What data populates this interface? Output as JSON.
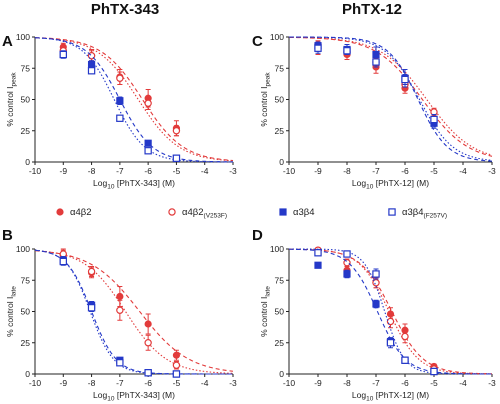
{
  "titles": {
    "left": "PhTX-343",
    "right": "PhTX-12"
  },
  "colors": {
    "red": "#e23b3b",
    "blue": "#2438c8"
  },
  "legend": [
    {
      "base": "α4β2",
      "sub": "",
      "color": "#e23b3b",
      "marker": "filled-circle",
      "line": "dashed"
    },
    {
      "base": "α4β2",
      "sub": "(V253F)",
      "color": "#e23b3b",
      "marker": "open-circle",
      "line": "dotted"
    },
    {
      "base": "α3β4",
      "sub": "",
      "color": "#2438c8",
      "marker": "filled-square",
      "line": "dashed"
    },
    {
      "base": "α3β4",
      "sub": "(F257V)",
      "color": "#2438c8",
      "marker": "open-square",
      "line": "dotted"
    }
  ],
  "chart_data": [
    {
      "panel": "A",
      "type": "scatter",
      "xlabel": {
        "pre": "Log",
        "sub": "10",
        "post": " [PhTX-343] (M)"
      },
      "ylabel": {
        "pre": "% control I",
        "sub": "peak"
      },
      "xlim": [
        -10,
        -3
      ],
      "ylim": [
        0,
        100
      ],
      "xticks": [
        -10,
        -9,
        -8,
        -7,
        -6,
        -5,
        -4,
        -3
      ],
      "yticks": [
        0,
        25,
        50,
        75,
        100
      ],
      "series": [
        {
          "x": [
            -9,
            -8,
            -7,
            -6,
            -5
          ],
          "y": [
            92,
            85,
            68,
            51,
            27
          ],
          "err": [
            3,
            5,
            6,
            7,
            6
          ],
          "fit": {
            "ic50": -6.2,
            "hill": 0.6
          }
        },
        {
          "x": [
            -9,
            -8,
            -7,
            -6,
            -5
          ],
          "y": [
            89,
            85,
            67,
            47,
            25
          ],
          "err": [
            4,
            4,
            5,
            5,
            4
          ],
          "fit": {
            "ic50": -6.35,
            "hill": 0.6
          }
        },
        {
          "x": [
            -9,
            -8,
            -7,
            -6,
            -5
          ],
          "y": [
            86,
            78,
            49,
            15,
            3
          ],
          "err": [
            3,
            3,
            3,
            2,
            1
          ],
          "fit": {
            "ic50": -7.0,
            "hill": 0.75
          }
        },
        {
          "x": [
            -9,
            -8,
            -7,
            -6,
            -5
          ],
          "y": [
            86,
            73,
            35,
            9,
            3
          ],
          "err": [
            2,
            2,
            2,
            2,
            1
          ],
          "fit": {
            "ic50": -7.2,
            "hill": 0.8
          }
        }
      ]
    },
    {
      "panel": "C",
      "type": "scatter",
      "xlabel": {
        "pre": "Log",
        "sub": "10",
        "post": " [PhTX-12] (M)"
      },
      "ylabel": {
        "pre": "% control I",
        "sub": "peak"
      },
      "xlim": [
        -10,
        -3
      ],
      "ylim": [
        0,
        100
      ],
      "xticks": [
        -10,
        -9,
        -8,
        -7,
        -6,
        -5,
        -4,
        -3
      ],
      "yticks": [
        0,
        25,
        50,
        75,
        100
      ],
      "series": [
        {
          "x": [
            -9,
            -8,
            -7,
            -6,
            -5
          ],
          "y": [
            91,
            86,
            76,
            59,
            35
          ],
          "err": [
            5,
            4,
            5,
            4,
            5
          ],
          "fit": {
            "ic50": -5.4,
            "hill": 0.55
          }
        },
        {
          "x": [
            -9,
            -8,
            -7,
            -6,
            -5
          ],
          "y": [
            94,
            88,
            80,
            62,
            40
          ],
          "err": [
            3,
            3,
            3,
            3,
            3
          ],
          "fit": {
            "ic50": -5.25,
            "hill": 0.55
          }
        },
        {
          "x": [
            -9,
            -8,
            -7,
            -6,
            -5
          ],
          "y": [
            93,
            90,
            86,
            67,
            31
          ],
          "err": [
            3,
            4,
            6,
            7,
            4
          ],
          "fit": {
            "ic50": -5.55,
            "hill": 0.85
          }
        },
        {
          "x": [
            -9,
            -8,
            -7,
            -6,
            -5
          ],
          "y": [
            91,
            89,
            80,
            66,
            34
          ],
          "err": [
            4,
            3,
            4,
            4,
            4
          ],
          "fit": {
            "ic50": -5.5,
            "hill": 0.75
          }
        }
      ]
    },
    {
      "panel": "B",
      "type": "scatter",
      "xlabel": {
        "pre": "Log",
        "sub": "10",
        "post": " [PhTX-343] (M)"
      },
      "ylabel": {
        "pre": "% control I",
        "sub": "late"
      },
      "xlim": [
        -10,
        -3
      ],
      "ylim": [
        0,
        100
      ],
      "xticks": [
        -10,
        -9,
        -8,
        -7,
        -6,
        -5,
        -4,
        -3
      ],
      "yticks": [
        0,
        25,
        50,
        75,
        100
      ],
      "series": [
        {
          "x": [
            -9,
            -8,
            -7,
            -6,
            -5
          ],
          "y": [
            95,
            81,
            62,
            40,
            15
          ],
          "err": [
            4,
            4,
            8,
            8,
            4
          ],
          "fit": {
            "ic50": -6.3,
            "hill": 0.5
          }
        },
        {
          "x": [
            -9,
            -8,
            -7,
            -6,
            -5
          ],
          "y": [
            96,
            82,
            51,
            25,
            7
          ],
          "err": [
            4,
            4,
            8,
            6,
            3
          ],
          "fit": {
            "ic50": -6.8,
            "hill": 0.6
          }
        },
        {
          "x": [
            -9,
            -8,
            -7,
            -6,
            -5
          ],
          "y": [
            91,
            55,
            11,
            1,
            0
          ],
          "err": [
            3,
            3,
            2,
            1,
            0
          ],
          "fit": {
            "ic50": -8.0,
            "hill": 1.0
          }
        },
        {
          "x": [
            -9,
            -8,
            -7,
            -6,
            -5
          ],
          "y": [
            90,
            53,
            9,
            1,
            0
          ],
          "err": [
            3,
            3,
            2,
            1,
            0
          ],
          "fit": {
            "ic50": -8.05,
            "hill": 1.05
          }
        }
      ]
    },
    {
      "panel": "D",
      "type": "scatter",
      "xlabel": {
        "pre": "Log",
        "sub": "10",
        "post": " [PhTX-12] (M)"
      },
      "ylabel": {
        "pre": "% control I",
        "sub": "late"
      },
      "xlim": [
        -10,
        -3
      ],
      "ylim": [
        0,
        100
      ],
      "xticks": [
        -10,
        -9,
        -8,
        -7,
        -6,
        -5,
        -4,
        -3
      ],
      "yticks": [
        0,
        25,
        50,
        75,
        100
      ],
      "series": [
        {
          "x": [
            -9,
            -8,
            -7,
            -6.5,
            -6,
            -5
          ],
          "y": [
            99,
            83,
            73,
            48,
            35,
            6
          ],
          "err": [
            2,
            3,
            4,
            5,
            5,
            2
          ],
          "fit": {
            "ic50": -6.45,
            "hill": 0.8
          }
        },
        {
          "x": [
            -9,
            -8,
            -7,
            -6.5,
            -6,
            -5
          ],
          "y": [
            99,
            89,
            73,
            42,
            30,
            4
          ],
          "err": [
            2,
            3,
            4,
            5,
            5,
            2
          ],
          "fit": {
            "ic50": -6.55,
            "hill": 0.85
          }
        },
        {
          "x": [
            -9,
            -8,
            -7,
            -6.5,
            -6,
            -5
          ],
          "y": [
            87,
            80,
            56,
            26,
            11,
            2
          ],
          "err": [
            2,
            3,
            3,
            3,
            2,
            1
          ],
          "fit": {
            "ic50": -6.95,
            "hill": 0.9
          }
        },
        {
          "x": [
            -9,
            -8,
            -7,
            -6.5,
            -6,
            -5
          ],
          "y": [
            97,
            96,
            80,
            25,
            11,
            2
          ],
          "err": [
            2,
            2,
            4,
            4,
            2,
            1
          ],
          "fit": {
            "ic50": -6.7,
            "hill": 1.25
          }
        }
      ]
    }
  ]
}
